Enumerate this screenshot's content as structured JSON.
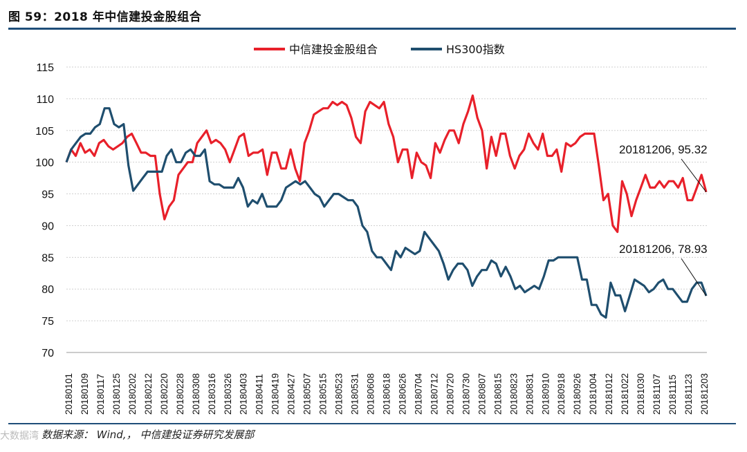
{
  "header": {
    "title": "图 59：2018 年中信建投金股组合"
  },
  "footer": {
    "source": "数据来源： Wind,， 中信建投证券研究发展部",
    "watermark": "大数据湾"
  },
  "chart_data": {
    "type": "line",
    "title": "",
    "xlabel": "",
    "ylabel": "",
    "ylim": [
      70,
      115
    ],
    "yticks": [
      70,
      75,
      80,
      85,
      90,
      95,
      100,
      105,
      110,
      115
    ],
    "grid": "horizontal",
    "legend": "top-center",
    "x_tick_labels": [
      "20180101",
      "20180109",
      "20180117",
      "20180125",
      "20180202",
      "20180212",
      "20180220",
      "20180228",
      "20180308",
      "20180316",
      "20180326",
      "20180403",
      "20180411",
      "20180419",
      "20180427",
      "20180507",
      "20180515",
      "20180523",
      "20180531",
      "20180608",
      "20180618",
      "20180626",
      "20180704",
      "20180712",
      "20180720",
      "20180730",
      "20180807",
      "20180815",
      "20180823",
      "20180831",
      "20180910",
      "20180918",
      "20180926",
      "20181004",
      "20181012",
      "20181022",
      "20181030",
      "20181107",
      "20181115",
      "20181123",
      "20181203"
    ],
    "series": [
      {
        "name": "中信建投金股组合",
        "color": "#e8202a",
        "values": [
          100,
          102,
          101,
          103,
          101.5,
          102,
          101,
          103,
          103.5,
          102.5,
          102,
          102.5,
          103,
          104,
          104.5,
          103,
          101.5,
          101.5,
          101,
          101,
          95,
          91,
          93,
          94,
          98,
          99,
          100,
          100,
          103,
          104,
          105,
          103,
          103.5,
          103,
          102,
          100,
          102,
          104,
          104.5,
          101,
          101.5,
          101.5,
          102,
          98,
          101.5,
          101.5,
          99,
          99,
          102,
          99,
          97,
          103,
          105,
          107.5,
          108,
          108.5,
          108.5,
          109.5,
          109,
          109.5,
          109,
          107,
          104,
          103,
          108,
          109.5,
          109,
          108.5,
          109.5,
          106,
          104,
          100,
          102,
          102,
          97.5,
          101.5,
          100,
          99.5,
          97.5,
          103,
          101.5,
          103.5,
          105,
          105,
          103,
          106,
          108,
          110.5,
          107,
          105,
          99,
          104,
          101,
          104.5,
          104.5,
          101,
          99,
          101,
          102,
          104.5,
          103,
          102,
          104.5,
          101,
          101,
          102,
          98.5,
          103,
          102.5,
          103,
          104,
          104.5,
          104.5,
          104.5,
          99.5,
          94,
          95,
          90,
          89,
          97,
          95,
          91.5,
          94,
          96,
          98,
          96,
          96,
          97,
          96,
          97,
          97,
          96,
          97.5,
          94,
          94,
          96,
          98,
          95.3
        ]
      },
      {
        "name": "HS300指数",
        "color": "#1f4e6e",
        "values": [
          100,
          102,
          103,
          104,
          104.5,
          104.5,
          105.5,
          106,
          108.5,
          108.5,
          106,
          105.5,
          106,
          99.5,
          95.5,
          96.5,
          97.5,
          98.5,
          98.5,
          98.5,
          98.5,
          101,
          102,
          100,
          100,
          101.5,
          102,
          101,
          101,
          102,
          97,
          96.5,
          96.5,
          96,
          96,
          96,
          97.5,
          96,
          93,
          94,
          93.5,
          95,
          93,
          93,
          93,
          94,
          96,
          96.5,
          97,
          96.5,
          97,
          96,
          95,
          94.5,
          93,
          94,
          95,
          95,
          94.5,
          94,
          94,
          93,
          90,
          89,
          86,
          85,
          85,
          84,
          83,
          86,
          85,
          86.5,
          86,
          85.5,
          86,
          89,
          88,
          87,
          86,
          84,
          81.5,
          83,
          84,
          84,
          83,
          80.5,
          82,
          83,
          83,
          84.5,
          84,
          82,
          83.5,
          82,
          80,
          80.5,
          79.5,
          80,
          80.5,
          80,
          82,
          84.5,
          84.5,
          85,
          85,
          85,
          85,
          85,
          81.5,
          81.5,
          77.5,
          77.5,
          76,
          75.5,
          81,
          79,
          79,
          76.5,
          79,
          81.5,
          81,
          80.5,
          79.5,
          80,
          81,
          81.5,
          80,
          80,
          79,
          78,
          78,
          80,
          81,
          81,
          78.93
        ]
      }
    ],
    "annotations": [
      {
        "text": "20181206, 95.32",
        "series": "中信建投金股组合",
        "x": "20181206",
        "y": 95.32
      },
      {
        "text": "20181206, 78.93",
        "series": "HS300指数",
        "x": "20181206",
        "y": 78.93
      }
    ]
  }
}
